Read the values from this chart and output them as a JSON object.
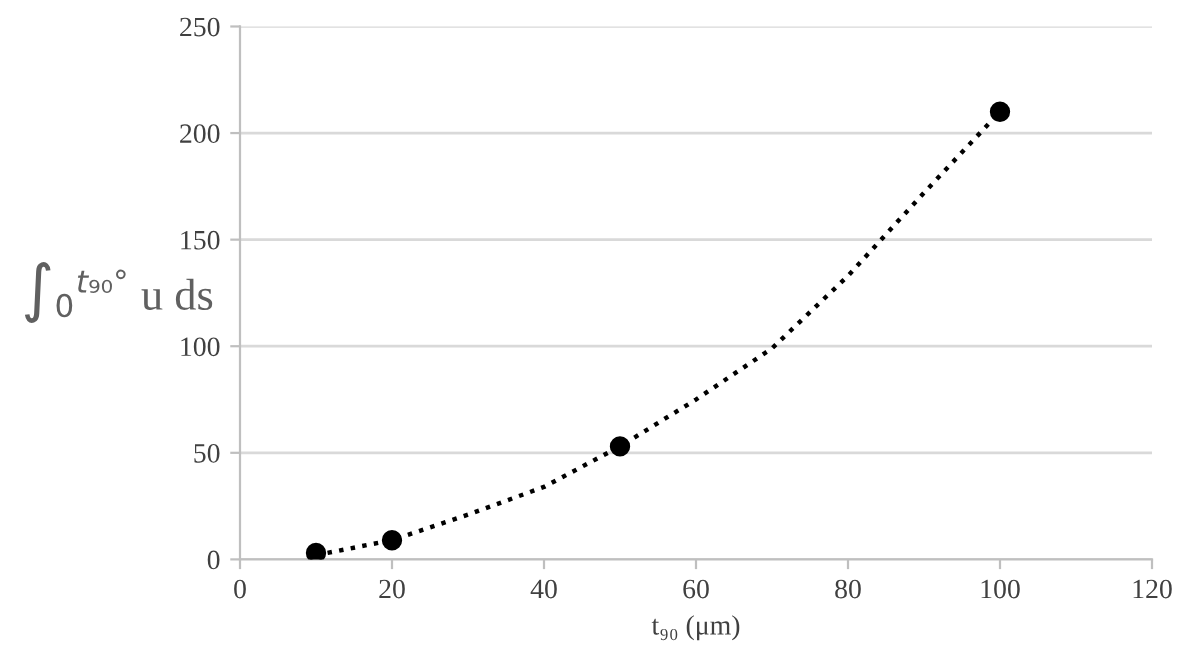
{
  "chart_data": {
    "type": "scatter",
    "xlabel": "t₉₀ (μm)",
    "ylabel": "∫$_{0}$$^{t₉₀°}$ u ds",
    "series": [
      {
        "type": "scatter",
        "color": "#000000",
        "marker": "circle",
        "x": [
          10,
          20,
          50,
          100
        ],
        "values": [
          3,
          9,
          53,
          210
        ]
      },
      {
        "type": "line",
        "color": "#000000",
        "marker": "none",
        "line_style": "dotted",
        "x": [
          10,
          20,
          30,
          40,
          50,
          60,
          70,
          80,
          90,
          100
        ],
        "values": [
          2,
          9,
          21,
          34,
          53,
          75,
          99,
          133,
          172,
          210
        ]
      }
    ],
    "xlim": [
      0,
      120
    ],
    "xticks": [
      0,
      20,
      40,
      60,
      80,
      100,
      120
    ],
    "ylim": [
      0,
      250
    ],
    "yticks": [
      0,
      50,
      100,
      150,
      200,
      250
    ],
    "grid": "y",
    "legend": false
  }
}
